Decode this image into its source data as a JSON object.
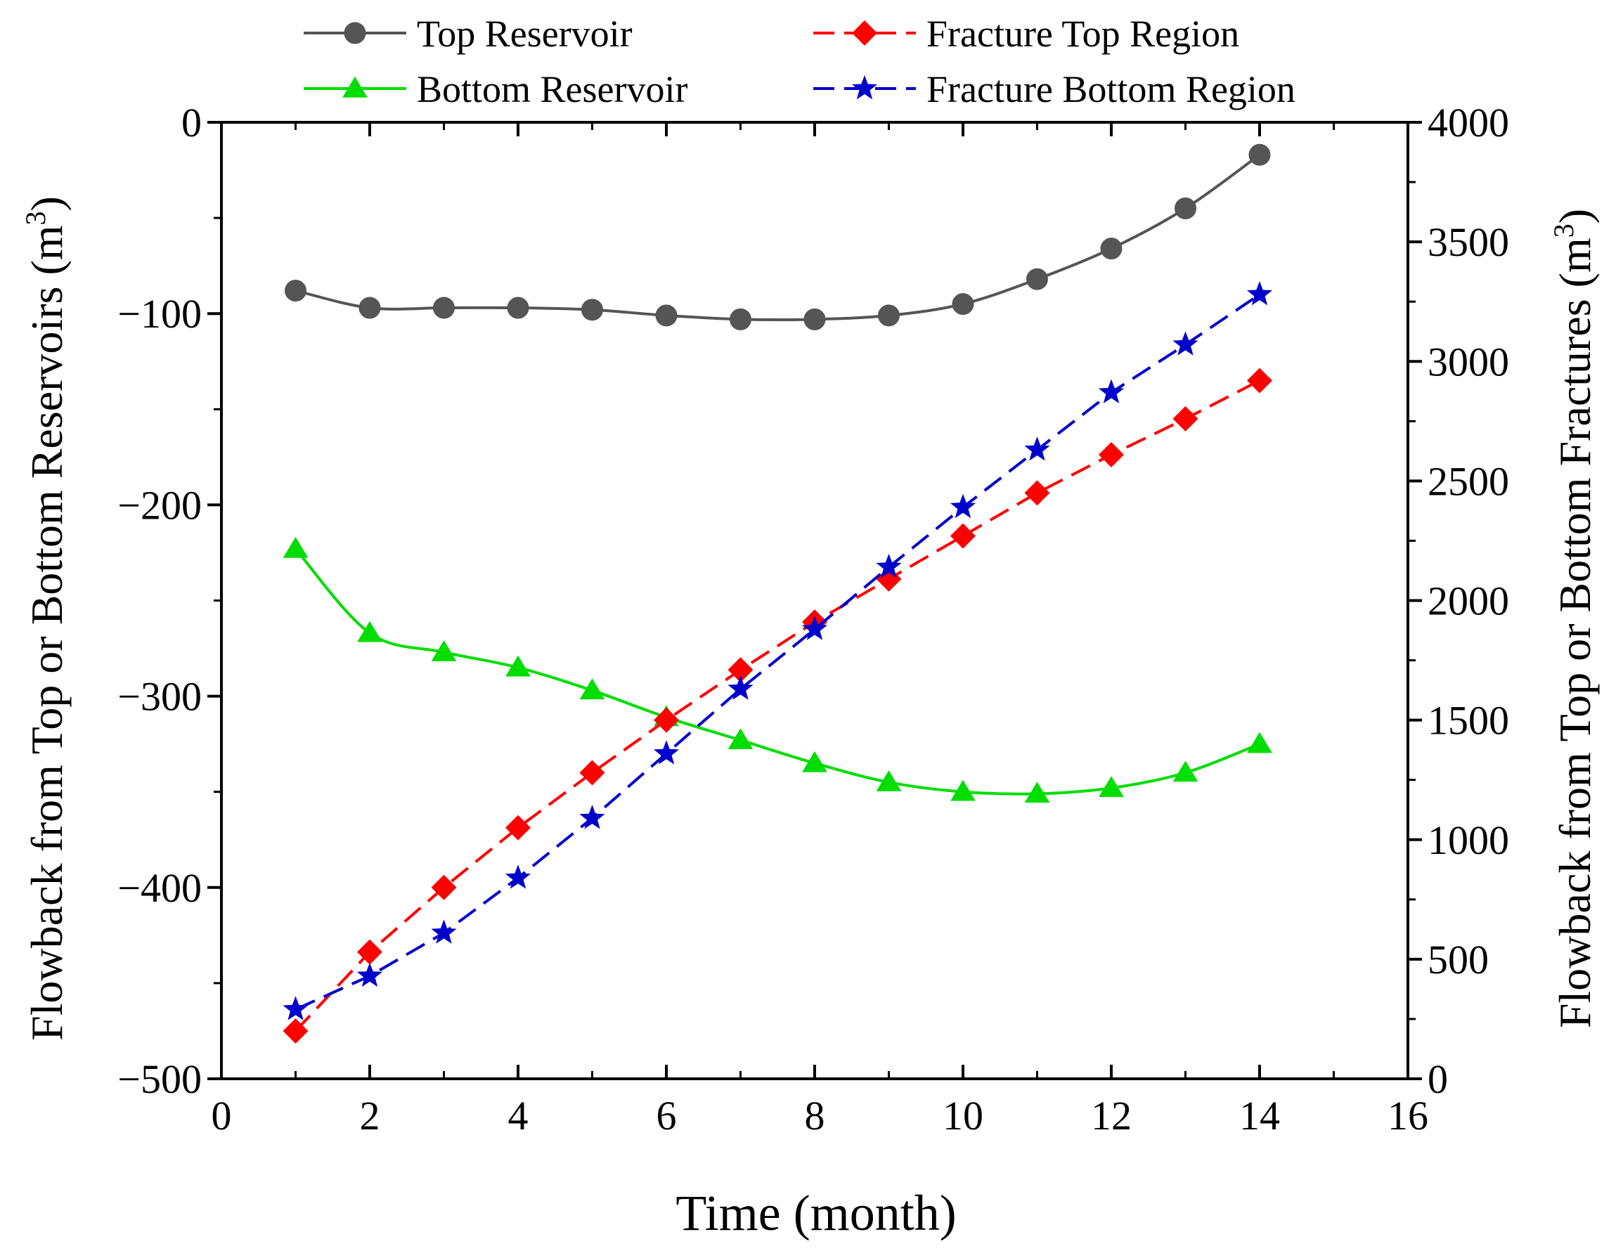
{
  "chart_data": {
    "type": "line",
    "xlabel": "Time (month)",
    "ylabel_left": "Flowback from Top or Bottom Reservoirs (m",
    "ylabel_left_sup": "3",
    "ylabel_left_close": ")",
    "ylabel_right": "Flowback from Top or Bottom Fractures (m",
    "ylabel_right_sup": "3",
    "ylabel_right_close": ")",
    "xlim": [
      0,
      16
    ],
    "ylim_left": [
      -500,
      0
    ],
    "ylim_right": [
      0,
      4000
    ],
    "x_ticks": [
      0,
      2,
      4,
      6,
      8,
      10,
      12,
      14,
      16
    ],
    "x_tick_labels": [
      "0",
      "2",
      "4",
      "6",
      "8",
      "10",
      "12",
      "14",
      "16"
    ],
    "y_left_ticks": [
      0,
      -100,
      -200,
      -300,
      -400,
      -500
    ],
    "y_left_tick_labels": [
      "0",
      "−100",
      "−200",
      "−300",
      "−400",
      "−500"
    ],
    "y_right_ticks": [
      0,
      500,
      1000,
      1500,
      2000,
      2500,
      3000,
      3500,
      4000
    ],
    "y_right_tick_labels": [
      "0",
      "500",
      "1000",
      "1500",
      "2000",
      "2500",
      "3000",
      "3500",
      "4000"
    ],
    "x": [
      1,
      2,
      3,
      4,
      5,
      6,
      7,
      8,
      9,
      10,
      11,
      12,
      13,
      14
    ],
    "grid": false,
    "legend_position": "top",
    "series": [
      {
        "name": "Top Reservoir",
        "axis": "left",
        "color": "#555555",
        "marker": "circle",
        "line": "solid",
        "values": [
          -88,
          -97,
          -97,
          -97,
          -98,
          -101,
          -103,
          -103,
          -101,
          -95,
          -82,
          -66,
          -45,
          -17
        ]
      },
      {
        "name": "Bottom Reservoir",
        "axis": "left",
        "color": "#00dd00",
        "marker": "triangle",
        "line": "solid",
        "values": [
          -223,
          -267,
          -277,
          -285,
          -297,
          -311,
          -323,
          -335,
          -345,
          -350,
          -351,
          -348,
          -340,
          -325
        ]
      },
      {
        "name": "Fracture Top Region",
        "axis": "right",
        "color": "#ff0000",
        "marker": "diamond",
        "line": "dashed",
        "values": [
          200,
          530,
          800,
          1050,
          1280,
          1500,
          1710,
          1910,
          2090,
          2270,
          2450,
          2610,
          2760,
          2920
        ]
      },
      {
        "name": "Fracture Bottom Region",
        "axis": "right",
        "color": "#0000cc",
        "marker": "star",
        "line": "dashed",
        "values": [
          290,
          430,
          610,
          840,
          1090,
          1360,
          1630,
          1880,
          2140,
          2390,
          2630,
          2870,
          3070,
          3280
        ]
      }
    ]
  }
}
